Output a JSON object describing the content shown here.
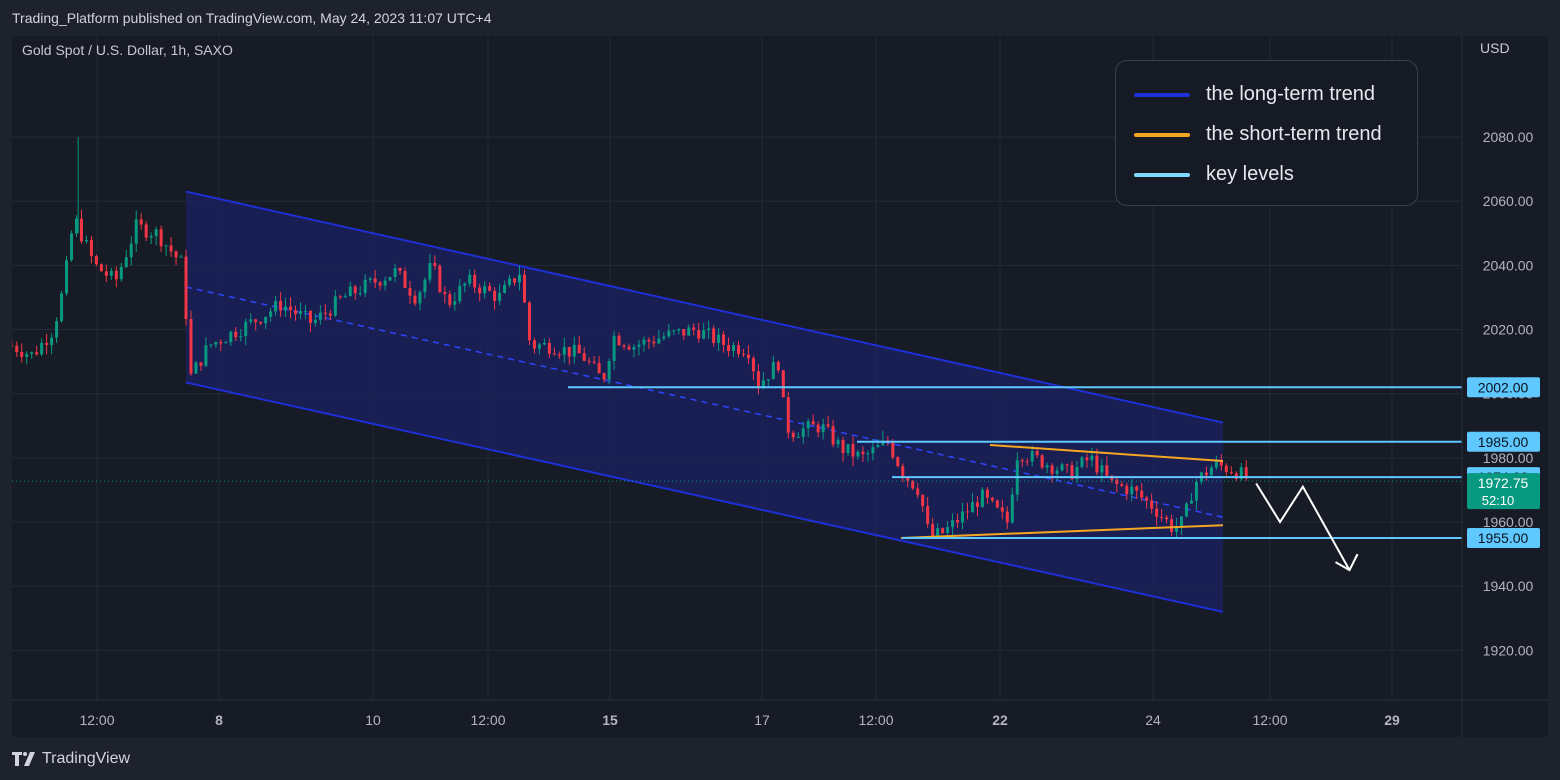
{
  "header": {
    "published_text": "Trading_Platform published on TradingView.com, May 24, 2023 11:07 UTC+4"
  },
  "chart_title": "Gold Spot / U.S. Dollar, 1h, SAXO",
  "currency_label": "USD",
  "legend": [
    {
      "label": "the long-term trend",
      "color": "#1e2fd6"
    },
    {
      "label": "the short-term trend",
      "color": "#f5a623"
    },
    {
      "label": "key levels",
      "color": "#7fd8ff"
    }
  ],
  "footer": {
    "brand": "TradingView"
  },
  "price_badges": [
    {
      "value": "2002.00",
      "kind": "level"
    },
    {
      "value": "1985.00",
      "kind": "level"
    },
    {
      "value": "1974.00",
      "kind": "level"
    },
    {
      "value": "1955.00",
      "kind": "level"
    }
  ],
  "current_price": {
    "value": "1972.75",
    "countdown": "52:10",
    "color": "#089981"
  },
  "chart_data": {
    "type": "candlestick",
    "symbol": "Gold Spot / U.S. Dollar",
    "timeframe": "1h",
    "x_tick_labels": [
      "12:00",
      "8",
      "10",
      "12:00",
      "15",
      "17",
      "12:00",
      "22",
      "24",
      "12:00",
      "29"
    ],
    "y_tick_labels": [
      "2080.00",
      "2060.00",
      "2040.00",
      "2020.00",
      "2000.00",
      "1980.00",
      "1960.00",
      "1940.00",
      "1920.00"
    ],
    "ylim": [
      1910,
      2100
    ],
    "key_levels": [
      2002,
      1985,
      1974,
      1955
    ],
    "current_price": 1972.75,
    "long_term_channel": {
      "upper": [
        [
          0,
          2063
        ],
        [
          1,
          1991
        ]
      ],
      "lower": [
        [
          0,
          2003.5
        ],
        [
          1,
          1932
        ]
      ],
      "mid_dashed": true
    },
    "short_term_triangle": {
      "upper": [
        [
          0,
          1984
        ],
        [
          1,
          1979
        ]
      ],
      "lower": [
        [
          0,
          1955
        ],
        [
          1,
          1959
        ]
      ]
    },
    "price_path": [
      [
        0,
        2015
      ],
      [
        0.02,
        2012
      ],
      [
        0.04,
        2020
      ],
      [
        0.05,
        2033
      ],
      [
        0.06,
        2055
      ],
      [
        0.08,
        2040
      ],
      [
        0.1,
        2035
      ],
      [
        0.12,
        2052
      ],
      [
        0.14,
        2050
      ],
      [
        0.165,
        2040
      ],
      [
        0.172,
        2005
      ],
      [
        0.19,
        2015
      ],
      [
        0.23,
        2022
      ],
      [
        0.26,
        2028
      ],
      [
        0.29,
        2022
      ],
      [
        0.32,
        2030
      ],
      [
        0.35,
        2035
      ],
      [
        0.37,
        2038
      ],
      [
        0.39,
        2030
      ],
      [
        0.405,
        2040
      ],
      [
        0.42,
        2028
      ],
      [
        0.44,
        2035
      ],
      [
        0.47,
        2030
      ],
      [
        0.49,
        2038
      ],
      [
        0.5,
        2015
      ],
      [
        0.52,
        2015
      ],
      [
        0.55,
        2012
      ],
      [
        0.57,
        2004
      ],
      [
        0.58,
        2018
      ],
      [
        0.6,
        2015
      ],
      [
        0.63,
        2018
      ],
      [
        0.66,
        2020
      ],
      [
        0.69,
        2015
      ],
      [
        0.71,
        2014
      ],
      [
        0.72,
        2003
      ],
      [
        0.74,
        2010
      ],
      [
        0.745,
        1993
      ],
      [
        0.75,
        1988
      ],
      [
        0.78,
        1990
      ],
      [
        0.8,
        1983
      ],
      [
        0.82,
        1980
      ],
      [
        0.845,
        1985
      ],
      [
        0.86,
        1975
      ],
      [
        0.875,
        1970
      ],
      [
        0.885,
        1955
      ],
      [
        0.9,
        1957
      ],
      [
        0.92,
        1963
      ],
      [
        0.935,
        1968
      ],
      [
        0.96,
        1960
      ],
      [
        0.97,
        1982
      ],
      [
        0.985,
        1980
      ],
      [
        1.0,
        1978
      ],
      [
        1.02,
        1975
      ],
      [
        1.04,
        1980
      ],
      [
        1.06,
        1972
      ],
      [
        1.08,
        1970
      ],
      [
        1.1,
        1965
      ],
      [
        1.12,
        1958
      ],
      [
        1.13,
        1960
      ],
      [
        1.14,
        1972
      ],
      [
        1.16,
        1978
      ],
      [
        1.18,
        1976
      ],
      [
        1.195,
        1972.75
      ]
    ],
    "projection_arrow": [
      [
        1.2,
        1972
      ],
      [
        1.223,
        1960
      ],
      [
        1.245,
        1971
      ],
      [
        1.29,
        1945
      ]
    ],
    "grid": true
  }
}
